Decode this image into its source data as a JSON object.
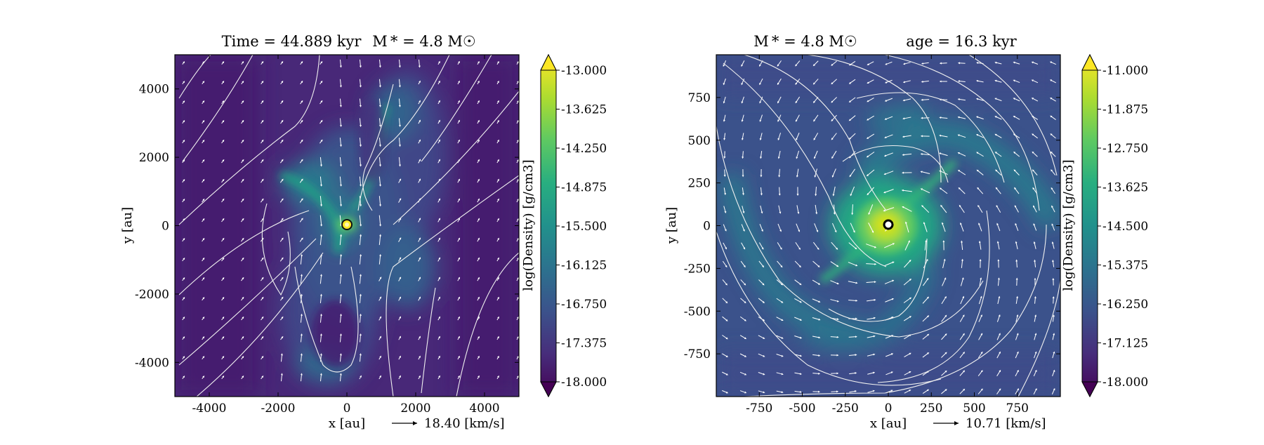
{
  "chart_data": [
    {
      "type": "heatmap",
      "title_left": "Time = 44.889 kyr",
      "title_right": "M * = 4.8 M☉",
      "xlabel": "x [au]",
      "ylabel": "y [au]",
      "xlim": [
        -5000,
        5000
      ],
      "ylim": [
        -5000,
        5000
      ],
      "xticks": [
        -4000,
        -2000,
        0,
        2000,
        4000
      ],
      "xtick_labels": [
        "-4000",
        "-2000",
        "0",
        "2000",
        "4000"
      ],
      "yticks": [
        -4000,
        -2000,
        0,
        2000,
        4000
      ],
      "ytick_labels": [
        "-4000",
        "-2000",
        "0",
        "2000",
        "4000"
      ],
      "velocity_key": "18.40 [km/s]",
      "colorbar": {
        "label": "log(Density) [g/cm3]",
        "colormap": "viridis",
        "range": [
          -18.0,
          -13.0
        ],
        "ticks": [
          -13.0,
          -13.625,
          -14.25,
          -14.875,
          -15.5,
          -16.125,
          -16.75,
          -17.375,
          -18.0
        ],
        "tick_labels": [
          "-13.000",
          "-13.625",
          "-14.250",
          "-14.875",
          "-15.500",
          "-16.125",
          "-16.750",
          "-17.375",
          "-18.000"
        ]
      },
      "star_position": [
        0,
        0
      ]
    },
    {
      "type": "heatmap",
      "title_left": "M * = 4.8 M☉",
      "title_right": "age = 16.3 kyr",
      "xlabel": "x [au]",
      "ylabel": "y [au]",
      "xlim": [
        -1000,
        1000
      ],
      "ylim": [
        -1000,
        1000
      ],
      "xticks": [
        -750,
        -500,
        -250,
        0,
        250,
        500,
        750
      ],
      "xtick_labels": [
        "-750",
        "-500",
        "-250",
        "0",
        "250",
        "500",
        "750"
      ],
      "yticks": [
        -750,
        -500,
        -250,
        0,
        250,
        500,
        750
      ],
      "ytick_labels": [
        "-750",
        "-500",
        "-250",
        "0",
        "250",
        "500",
        "750"
      ],
      "velocity_key": "10.71 [km/s]",
      "colorbar": {
        "label": "log(Density) [g/cm3]",
        "colormap": "viridis",
        "range": [
          -18.0,
          -11.0
        ],
        "ticks": [
          -11.0,
          -11.875,
          -12.75,
          -13.625,
          -14.5,
          -15.375,
          -16.25,
          -17.125,
          -18.0
        ],
        "tick_labels": [
          "-11.000",
          "-11.875",
          "-12.750",
          "-13.625",
          "-14.500",
          "-15.375",
          "-16.250",
          "-17.125",
          "-18.000"
        ]
      },
      "star_position": [
        0,
        0
      ]
    }
  ]
}
